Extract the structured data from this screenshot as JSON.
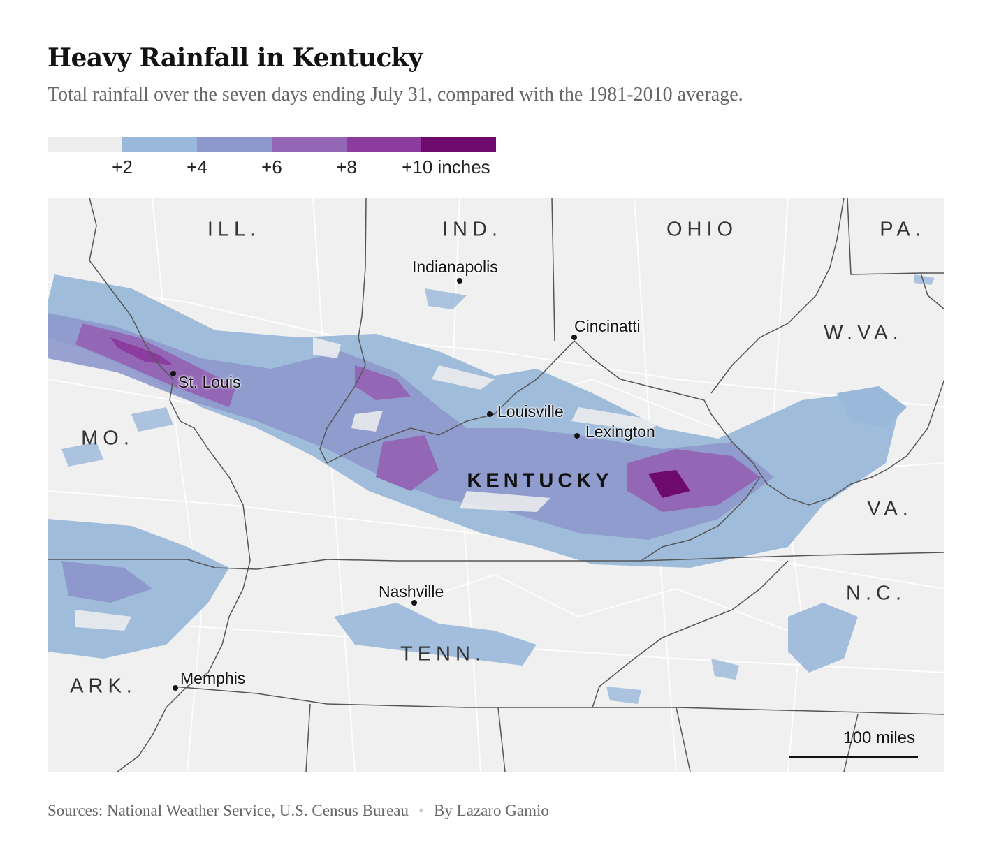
{
  "title": "Heavy Rainfall in Kentucky",
  "subtitle": "Total rainfall over the seven days ending July 31, compared with the 1981-2010 average.",
  "legend": {
    "colors": [
      "#ededed",
      "#9ab8d9",
      "#8e98cc",
      "#9467b6",
      "#8c3c9e",
      "#6e0a6e"
    ],
    "ticks": [
      "+2",
      "+4",
      "+6",
      "+8",
      "+10 inches"
    ]
  },
  "map": {
    "states": {
      "ill": "ILL.",
      "ind": "IND.",
      "ohio": "OHIO",
      "pa": "PA.",
      "wva": "W.VA.",
      "mo": "MO.",
      "ky": "KENTUCKY",
      "va": "VA.",
      "nc": "N.C.",
      "tenn": "TENN.",
      "ark": "ARK."
    },
    "cities": {
      "indianapolis": "Indianapolis",
      "cincinnati": "Cincinatti",
      "stlouis": "St. Louis",
      "louisville": "Louisville",
      "lexington": "Lexington",
      "nashville": "Nashville",
      "memphis": "Memphis"
    },
    "scale_label": "100 miles"
  },
  "footer": {
    "sources": "Sources: National Weather Service, U.S. Census Bureau",
    "byline": "By Lazaro Gamio"
  }
}
